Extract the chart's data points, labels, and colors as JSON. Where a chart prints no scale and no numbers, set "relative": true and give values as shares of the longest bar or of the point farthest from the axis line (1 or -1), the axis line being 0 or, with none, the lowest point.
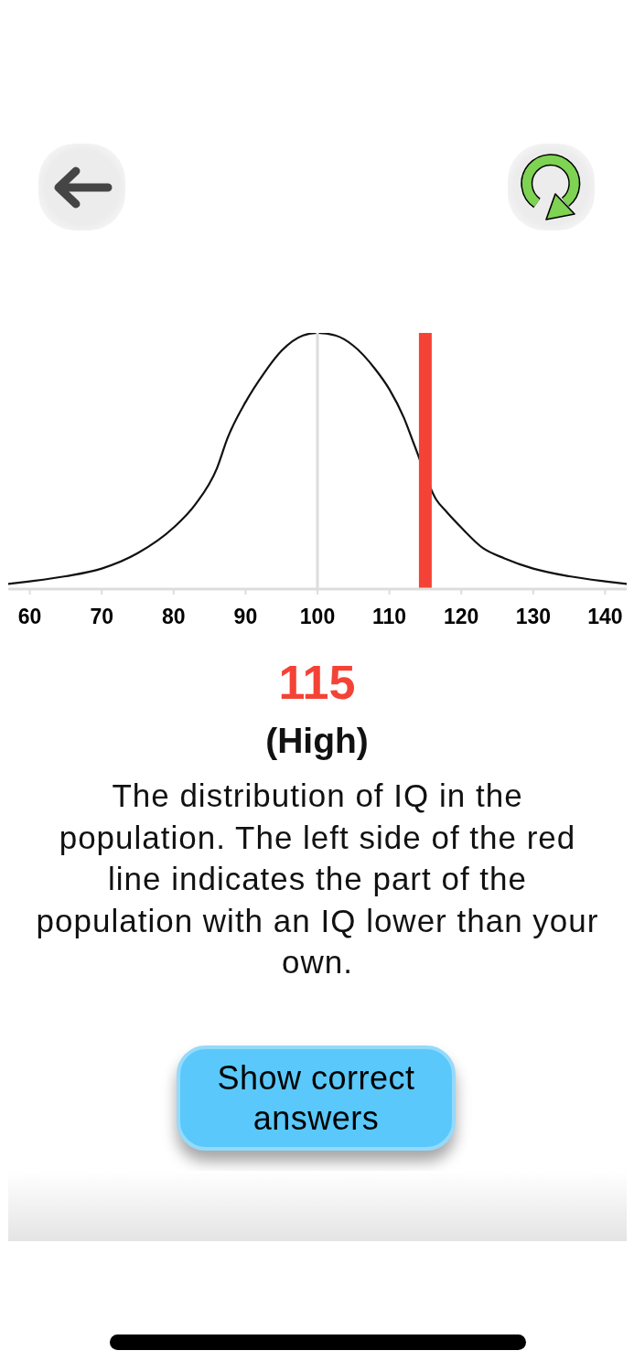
{
  "chart_data": {
    "type": "line",
    "relative": true,
    "x": [
      57,
      60,
      65,
      70,
      75,
      80,
      83,
      86,
      87.5,
      90,
      92.5,
      95,
      98,
      100,
      102.5,
      105,
      108,
      110,
      112,
      113.5,
      116.5,
      118,
      120,
      123,
      126,
      130,
      135,
      140,
      143
    ],
    "values": [
      0.02,
      0.03,
      0.05,
      0.08,
      0.14,
      0.24,
      0.33,
      0.47,
      0.59,
      0.73,
      0.84,
      0.93,
      0.99,
      1,
      0.99,
      0.95,
      0.86,
      0.78,
      0.67,
      0.56,
      0.35,
      0.3,
      0.24,
      0.16,
      0.12,
      0.08,
      0.05,
      0.03,
      0.02
    ],
    "color": "#111111",
    "xlim": [
      57,
      143
    ],
    "xticks": [
      60,
      70,
      80,
      90,
      100,
      110,
      120,
      130,
      140
    ],
    "ref_lines": [
      {
        "axis": "x",
        "value": 100,
        "color": "#dddddd"
      },
      {
        "axis": "x",
        "value": 115,
        "color": "#f44336"
      }
    ],
    "annotations": [
      "115",
      "(High)",
      "The distribution of IQ in the population. The left side of the red line indicates the part of the population with an IQ lower than your own.",
      "Show correct answers"
    ]
  }
}
